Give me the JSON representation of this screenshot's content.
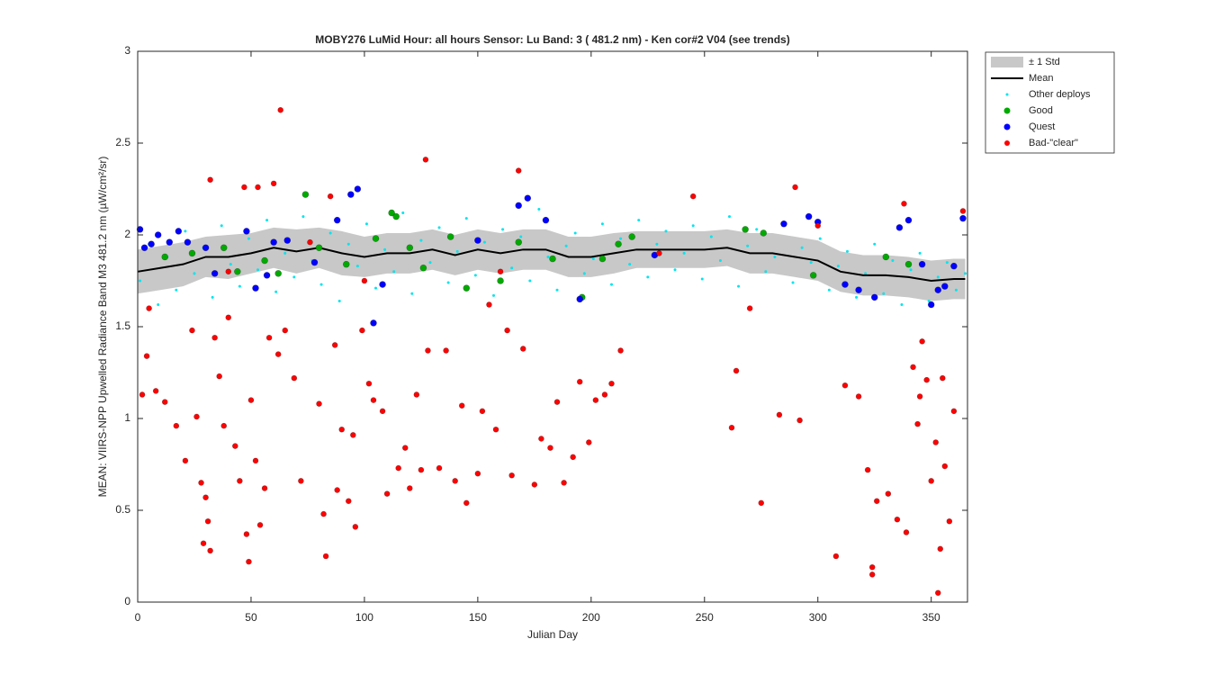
{
  "chart_data": {
    "type": "scatter",
    "title": "MOBY276   LuMid  Hour: all hours  Sensor: Lu Band: 3 ( 481.2 nm)  - Ken cor#2 V04 (see trends)",
    "xlabel": "Julian Day",
    "ylabel": "MEAN: VIIRS-NPP Upwelled Radiance Band M3 481.2 nm (µW/cm²/sr)",
    "xlim": [
      0,
      366
    ],
    "ylim": [
      0,
      3
    ],
    "xticks": [
      0,
      50,
      100,
      150,
      200,
      250,
      300,
      350
    ],
    "yticks": [
      0,
      0.5,
      1,
      1.5,
      2,
      2.5,
      3
    ],
    "legend_position": "outside-right",
    "series": [
      {
        "name": "± 1 Std",
        "style": "band",
        "color": "#c8c8c8",
        "x": [
          0,
          10,
          20,
          30,
          40,
          50,
          60,
          70,
          80,
          90,
          100,
          110,
          120,
          130,
          140,
          150,
          160,
          170,
          180,
          190,
          200,
          210,
          220,
          230,
          240,
          250,
          260,
          270,
          280,
          290,
          300,
          310,
          320,
          330,
          340,
          350,
          360,
          365
        ],
        "upper": [
          1.92,
          1.94,
          1.96,
          1.99,
          2.0,
          2.01,
          2.04,
          2.03,
          2.04,
          2.02,
          1.99,
          2.01,
          2.01,
          2.03,
          2.0,
          2.03,
          2.01,
          2.03,
          2.03,
          1.99,
          1.99,
          2.01,
          2.02,
          2.02,
          2.02,
          2.02,
          2.03,
          2.01,
          2.01,
          1.99,
          1.97,
          1.91,
          1.89,
          1.89,
          1.88,
          1.86,
          1.87,
          1.87
        ],
        "lower": [
          1.68,
          1.7,
          1.72,
          1.77,
          1.76,
          1.79,
          1.82,
          1.79,
          1.82,
          1.78,
          1.77,
          1.79,
          1.79,
          1.81,
          1.78,
          1.81,
          1.79,
          1.81,
          1.81,
          1.77,
          1.77,
          1.79,
          1.82,
          1.82,
          1.82,
          1.82,
          1.83,
          1.79,
          1.79,
          1.77,
          1.75,
          1.69,
          1.67,
          1.67,
          1.66,
          1.64,
          1.65,
          1.65
        ]
      },
      {
        "name": "Mean",
        "style": "line",
        "color": "#000000",
        "x": [
          0,
          10,
          20,
          30,
          40,
          50,
          60,
          70,
          80,
          90,
          100,
          110,
          120,
          130,
          140,
          150,
          160,
          170,
          180,
          190,
          200,
          210,
          220,
          230,
          240,
          250,
          260,
          270,
          280,
          290,
          300,
          310,
          320,
          330,
          340,
          350,
          360,
          365
        ],
        "values": [
          1.8,
          1.82,
          1.84,
          1.88,
          1.88,
          1.9,
          1.93,
          1.91,
          1.93,
          1.9,
          1.88,
          1.9,
          1.9,
          1.92,
          1.89,
          1.92,
          1.9,
          1.92,
          1.92,
          1.88,
          1.88,
          1.9,
          1.92,
          1.92,
          1.92,
          1.92,
          1.93,
          1.9,
          1.9,
          1.88,
          1.86,
          1.8,
          1.78,
          1.78,
          1.77,
          1.75,
          1.76,
          1.76
        ]
      },
      {
        "name": "Other deploys",
        "style": "dot",
        "size": 1.5,
        "color": "#00e5ee",
        "x": [
          1,
          5,
          9,
          13,
          17,
          21,
          25,
          29,
          33,
          37,
          41,
          45,
          49,
          53,
          57,
          61,
          65,
          69,
          73,
          77,
          81,
          85,
          89,
          93,
          97,
          101,
          105,
          109,
          113,
          117,
          121,
          125,
          129,
          133,
          137,
          141,
          145,
          149,
          153,
          157,
          161,
          165,
          169,
          173,
          177,
          181,
          185,
          189,
          193,
          197,
          201,
          205,
          209,
          213,
          217,
          221,
          225,
          229,
          233,
          237,
          241,
          245,
          249,
          253,
          257,
          261,
          265,
          269,
          273,
          277,
          281,
          285,
          289,
          293,
          297,
          301,
          305,
          309,
          313,
          317,
          321,
          325,
          329,
          333,
          337,
          341,
          345,
          349,
          353,
          357,
          361,
          365
        ],
        "values": [
          1.75,
          1.95,
          1.62,
          1.88,
          1.7,
          2.02,
          1.79,
          1.93,
          1.66,
          2.05,
          1.84,
          1.72,
          1.98,
          1.81,
          2.08,
          1.69,
          1.9,
          1.77,
          2.1,
          1.86,
          1.73,
          2.01,
          1.64,
          1.95,
          1.83,
          2.06,
          1.71,
          1.92,
          1.8,
          2.12,
          1.68,
          1.97,
          1.85,
          2.04,
          1.74,
          1.91,
          2.09,
          1.78,
          1.96,
          1.67,
          2.03,
          1.82,
          1.99,
          1.75,
          2.14,
          1.88,
          1.7,
          1.94,
          2.01,
          1.79,
          1.87,
          2.06,
          1.73,
          1.98,
          1.84,
          2.08,
          1.77,
          1.95,
          2.02,
          1.81,
          1.9,
          2.05,
          1.76,
          1.99,
          1.86,
          2.1,
          1.72,
          1.94,
          2.03,
          1.8,
          1.88,
          2.07,
          1.74,
          1.93,
          1.85,
          1.98,
          1.7,
          1.83,
          1.91,
          1.66,
          1.79,
          1.95,
          1.68,
          1.86,
          1.62,
          1.81,
          1.9,
          1.64,
          1.77,
          1.85,
          1.7,
          1.79
        ]
      },
      {
        "name": "Good",
        "style": "dot",
        "size": 3.5,
        "color": "#00aa00",
        "x": [
          12,
          24,
          38,
          44,
          56,
          62,
          74,
          80,
          92,
          105,
          112,
          114,
          120,
          126,
          138,
          145,
          160,
          168,
          183,
          196,
          205,
          212,
          218,
          268,
          276,
          298,
          330,
          340
        ],
        "values": [
          1.88,
          1.9,
          1.93,
          1.8,
          1.86,
          1.79,
          2.22,
          1.93,
          1.84,
          1.98,
          2.12,
          2.1,
          1.93,
          1.82,
          1.99,
          1.71,
          1.75,
          1.96,
          1.87,
          1.66,
          1.87,
          1.95,
          1.99,
          2.03,
          2.01,
          1.78,
          1.88,
          1.84
        ]
      },
      {
        "name": "Quest",
        "style": "dot",
        "size": 3.5,
        "color": "#0000ff",
        "x": [
          1,
          3,
          6,
          9,
          14,
          18,
          22,
          30,
          34,
          48,
          52,
          57,
          60,
          66,
          78,
          88,
          94,
          97,
          104,
          108,
          150,
          168,
          172,
          180,
          195,
          228,
          285,
          296,
          300,
          312,
          318,
          325,
          336,
          340,
          346,
          350,
          353,
          356,
          360,
          364
        ],
        "values": [
          2.03,
          1.93,
          1.95,
          2.0,
          1.96,
          2.02,
          1.96,
          1.93,
          1.79,
          2.02,
          1.71,
          1.78,
          1.96,
          1.97,
          1.85,
          2.08,
          2.22,
          2.25,
          1.52,
          1.73,
          1.97,
          2.16,
          2.2,
          2.08,
          1.65,
          1.89,
          2.06,
          2.1,
          2.07,
          1.73,
          1.7,
          1.66,
          2.04,
          2.08,
          1.84,
          1.62,
          1.7,
          1.72,
          1.83,
          2.09
        ]
      },
      {
        "name": "Bad-\"clear\"",
        "style": "dot",
        "size": 3,
        "color": "#ff0000",
        "x": [
          2,
          4,
          5,
          8,
          12,
          17,
          21,
          24,
          26,
          28,
          29,
          30,
          31,
          32,
          32,
          34,
          36,
          38,
          40,
          43,
          45,
          47,
          48,
          49,
          50,
          52,
          53,
          54,
          56,
          58,
          60,
          62,
          63,
          65,
          69,
          72,
          76,
          80,
          82,
          83,
          85,
          87,
          88,
          90,
          93,
          95,
          96,
          99,
          102,
          104,
          108,
          110,
          115,
          118,
          120,
          123,
          125,
          127,
          128,
          133,
          136,
          140,
          143,
          145,
          150,
          152,
          155,
          158,
          163,
          165,
          170,
          175,
          178,
          182,
          185,
          188,
          192,
          195,
          199,
          202,
          206,
          209,
          213,
          262,
          264,
          270,
          275,
          283,
          292,
          308,
          312,
          318,
          322,
          324,
          324,
          326,
          331,
          335,
          339,
          342,
          344,
          346,
          348,
          350,
          352,
          353,
          354,
          356,
          358,
          360,
          338,
          364,
          345,
          355,
          290,
          245,
          168,
          300,
          230,
          160,
          100,
          40
        ],
        "values": [
          1.13,
          1.34,
          1.6,
          1.15,
          1.09,
          0.96,
          0.77,
          1.48,
          1.01,
          0.65,
          0.32,
          0.57,
          0.44,
          0.28,
          2.3,
          1.44,
          1.23,
          0.96,
          1.55,
          0.85,
          0.66,
          2.26,
          0.37,
          0.22,
          1.1,
          0.77,
          2.26,
          0.42,
          0.62,
          1.44,
          2.28,
          1.35,
          2.68,
          1.48,
          1.22,
          0.66,
          1.96,
          1.08,
          0.48,
          0.25,
          2.21,
          1.4,
          0.61,
          0.94,
          0.55,
          0.91,
          0.41,
          1.48,
          1.19,
          1.1,
          1.04,
          0.59,
          0.73,
          0.84,
          0.62,
          1.13,
          0.72,
          2.41,
          1.37,
          0.73,
          1.37,
          0.66,
          1.07,
          0.54,
          0.7,
          1.04,
          1.62,
          0.94,
          1.48,
          0.69,
          1.38,
          0.64,
          0.89,
          0.84,
          1.09,
          0.65,
          0.79,
          1.2,
          0.87,
          1.1,
          1.13,
          1.19,
          1.37,
          0.95,
          1.26,
          1.6,
          0.54,
          1.02,
          0.99,
          0.25,
          1.18,
          1.12,
          0.72,
          0.19,
          0.15,
          0.55,
          0.59,
          0.45,
          0.38,
          1.28,
          0.97,
          1.42,
          1.21,
          0.66,
          0.87,
          0.05,
          0.29,
          0.74,
          0.44,
          1.04,
          2.17,
          2.13,
          1.12,
          1.22,
          2.26,
          2.21,
          2.35,
          2.05,
          1.9,
          1.8,
          1.75,
          1.8
        ]
      }
    ]
  }
}
